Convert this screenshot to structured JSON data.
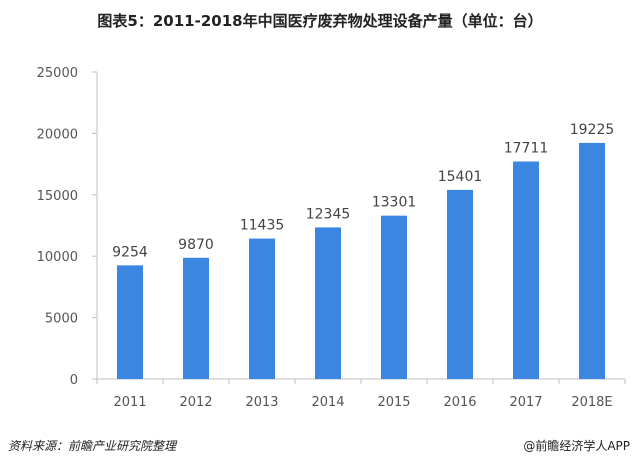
{
  "chart_data": {
    "type": "bar",
    "title": "图表5：2011-2018年中国医疗废弃物处理设备产量（单位：台）",
    "categories": [
      "2011",
      "2012",
      "2013",
      "2014",
      "2015",
      "2016",
      "2017",
      "2018E"
    ],
    "values": [
      9254,
      9870,
      11435,
      12345,
      13301,
      15401,
      17711,
      19225
    ],
    "xlabel": "",
    "ylabel": "",
    "ylim": [
      0,
      25000
    ],
    "yticks": [
      0,
      5000,
      10000,
      15000,
      20000,
      25000
    ],
    "grid": false,
    "legend": "none",
    "bar_color": "#3b86e0"
  },
  "footer": {
    "source": "资料来源：前瞻产业研究院整理",
    "brand": "@前瞻经济学人APP"
  }
}
